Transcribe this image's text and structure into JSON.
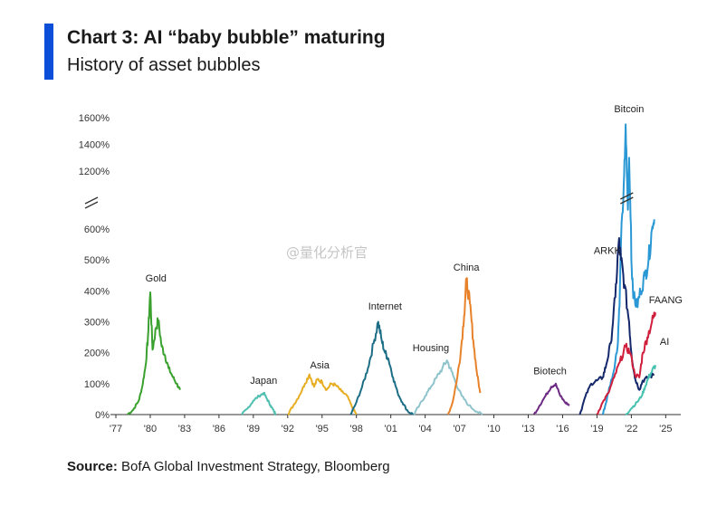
{
  "header": {
    "title": "Chart 3: AI “baby bubble” maturing",
    "subtitle": "History of asset bubbles"
  },
  "footer": {
    "source_label": "Source:",
    "source_text": " BofA Global Investment Strategy, Bloomberg"
  },
  "watermark": "@量化分析官",
  "colors": {
    "accent": "#0b4fd8",
    "axis": "#333333",
    "text": "#1a1a1a"
  },
  "chart_data": {
    "type": "line",
    "title": "History of asset bubbles",
    "xlabel": "",
    "ylabel": "",
    "xlim": [
      1977,
      2026
    ],
    "x_ticks": [
      "'77",
      "'80",
      "'83",
      "'86",
      "'89",
      "'92",
      "'95",
      "'98",
      "'01",
      "'04",
      "'07",
      "'10",
      "'13",
      "'16",
      "'19",
      "'22",
      "'25"
    ],
    "x_tick_years": [
      1977,
      1980,
      1983,
      1986,
      1989,
      1992,
      1995,
      1998,
      2001,
      2004,
      2007,
      2010,
      2013,
      2016,
      2019,
      2022,
      2025
    ],
    "y_ticks_lower": [
      "0%",
      "100%",
      "200%",
      "300%",
      "400%",
      "500%",
      "600%"
    ],
    "y_ticks_lower_values": [
      0,
      100,
      200,
      300,
      400,
      500,
      600
    ],
    "y_ticks_upper": [
      "1200%",
      "1400%",
      "1600%"
    ],
    "y_ticks_upper_values": [
      1200,
      1400,
      1600
    ],
    "axis_break": true,
    "grid": false,
    "series": [
      {
        "name": "Gold",
        "color": "#3aa02e",
        "label_year": 1980.5,
        "label_value": 430,
        "points": [
          [
            1978.0,
            0
          ],
          [
            1978.5,
            15
          ],
          [
            1979.0,
            45
          ],
          [
            1979.3,
            90
          ],
          [
            1979.6,
            160
          ],
          [
            1979.8,
            250
          ],
          [
            1980.0,
            395
          ],
          [
            1980.2,
            210
          ],
          [
            1980.5,
            280
          ],
          [
            1980.7,
            305
          ],
          [
            1981.0,
            220
          ],
          [
            1981.3,
            190
          ],
          [
            1981.6,
            150
          ],
          [
            1982.0,
            120
          ],
          [
            1982.3,
            100
          ],
          [
            1982.6,
            80
          ]
        ]
      },
      {
        "name": "Japan",
        "color": "#4fbfb0",
        "label_year": 1989.9,
        "label_value": 100,
        "points": [
          [
            1988.0,
            0
          ],
          [
            1988.5,
            20
          ],
          [
            1989.0,
            45
          ],
          [
            1989.5,
            60
          ],
          [
            1989.9,
            70
          ],
          [
            1990.2,
            50
          ],
          [
            1990.5,
            30
          ],
          [
            1990.8,
            10
          ],
          [
            1991.0,
            0
          ]
        ]
      },
      {
        "name": "Asia",
        "color": "#e7ae23",
        "label_year": 1994.8,
        "label_value": 150,
        "points": [
          [
            1992.0,
            0
          ],
          [
            1992.5,
            30
          ],
          [
            1993.0,
            60
          ],
          [
            1993.5,
            100
          ],
          [
            1993.9,
            130
          ],
          [
            1994.3,
            90
          ],
          [
            1994.6,
            115
          ],
          [
            1995.0,
            105
          ],
          [
            1995.4,
            80
          ],
          [
            1995.8,
            100
          ],
          [
            1996.2,
            95
          ],
          [
            1996.7,
            75
          ],
          [
            1997.2,
            60
          ],
          [
            1997.6,
            25
          ],
          [
            1998.0,
            0
          ]
        ]
      },
      {
        "name": "Internet",
        "color": "#1c6e86",
        "label_year": 2000.5,
        "label_value": 340,
        "points": [
          [
            1997.5,
            0
          ],
          [
            1998.0,
            40
          ],
          [
            1998.5,
            90
          ],
          [
            1999.0,
            150
          ],
          [
            1999.5,
            230
          ],
          [
            1999.9,
            300
          ],
          [
            2000.2,
            240
          ],
          [
            2000.5,
            200
          ],
          [
            2000.8,
            180
          ],
          [
            2001.2,
            120
          ],
          [
            2001.6,
            70
          ],
          [
            2002.0,
            40
          ],
          [
            2002.5,
            10
          ],
          [
            2003.0,
            0
          ]
        ]
      },
      {
        "name": "Housing",
        "color": "#8fc4cc",
        "label_year": 2004.5,
        "label_value": 205,
        "points": [
          [
            2003.0,
            0
          ],
          [
            2003.5,
            30
          ],
          [
            2004.0,
            60
          ],
          [
            2004.5,
            90
          ],
          [
            2005.0,
            120
          ],
          [
            2005.5,
            150
          ],
          [
            2005.9,
            175
          ],
          [
            2006.3,
            140
          ],
          [
            2006.7,
            100
          ],
          [
            2007.2,
            60
          ],
          [
            2007.8,
            30
          ],
          [
            2008.5,
            10
          ],
          [
            2009.0,
            0
          ]
        ]
      },
      {
        "name": "China",
        "color": "#e7822a",
        "label_year": 2007.6,
        "label_value": 465,
        "points": [
          [
            2006.0,
            0
          ],
          [
            2006.4,
            40
          ],
          [
            2006.8,
            120
          ],
          [
            2007.1,
            200
          ],
          [
            2007.4,
            320
          ],
          [
            2007.6,
            435
          ],
          [
            2007.9,
            360
          ],
          [
            2008.2,
            240
          ],
          [
            2008.5,
            140
          ],
          [
            2008.8,
            70
          ]
        ]
      },
      {
        "name": "Biotech",
        "color": "#6d2a82",
        "label_year": 2014.9,
        "label_value": 130,
        "points": [
          [
            2013.5,
            0
          ],
          [
            2014.0,
            30
          ],
          [
            2014.5,
            60
          ],
          [
            2015.0,
            90
          ],
          [
            2015.4,
            100
          ],
          [
            2015.8,
            60
          ],
          [
            2016.2,
            40
          ],
          [
            2016.6,
            30
          ]
        ]
      },
      {
        "name": "Bitcoin",
        "color": "#2a98d4",
        "label_year": 2021.8,
        "label_value": 1640,
        "points": [
          [
            2019.5,
            0
          ],
          [
            2019.8,
            40
          ],
          [
            2020.1,
            90
          ],
          [
            2020.4,
            130
          ],
          [
            2020.8,
            220
          ],
          [
            2021.0,
            400
          ],
          [
            2021.3,
            900
          ],
          [
            2021.5,
            1550
          ],
          [
            2021.7,
            800
          ],
          [
            2021.8,
            1300
          ],
          [
            2022.0,
            500
          ],
          [
            2022.2,
            380
          ],
          [
            2022.5,
            350
          ],
          [
            2022.8,
            400
          ],
          [
            2023.2,
            450
          ],
          [
            2023.5,
            500
          ],
          [
            2023.8,
            600
          ],
          [
            2024.0,
            700
          ]
        ]
      },
      {
        "name": "ARKK",
        "color": "#14276b",
        "label_year": 2019.9,
        "label_value": 520,
        "points": [
          [
            2017.5,
            0
          ],
          [
            2018.0,
            60
          ],
          [
            2018.5,
            100
          ],
          [
            2019.0,
            110
          ],
          [
            2019.5,
            120
          ],
          [
            2019.8,
            160
          ],
          [
            2020.2,
            230
          ],
          [
            2020.6,
            380
          ],
          [
            2020.9,
            560
          ],
          [
            2021.1,
            500
          ],
          [
            2021.4,
            420
          ],
          [
            2021.8,
            300
          ],
          [
            2022.0,
            200
          ],
          [
            2022.3,
            120
          ],
          [
            2022.7,
            80
          ],
          [
            2023.0,
            110
          ],
          [
            2023.5,
            120
          ],
          [
            2024.0,
            130
          ]
        ]
      },
      {
        "name": "FAANG",
        "color": "#d01f3c",
        "label_year": 2025.0,
        "label_value": 360,
        "points": [
          [
            2019.0,
            0
          ],
          [
            2019.5,
            40
          ],
          [
            2020.0,
            70
          ],
          [
            2020.5,
            120
          ],
          [
            2021.0,
            170
          ],
          [
            2021.5,
            220
          ],
          [
            2021.9,
            200
          ],
          [
            2022.3,
            130
          ],
          [
            2022.7,
            120
          ],
          [
            2023.0,
            200
          ],
          [
            2023.4,
            250
          ],
          [
            2023.8,
            300
          ],
          [
            2024.1,
            330
          ]
        ]
      },
      {
        "name": "AI",
        "color": "#47c2b0",
        "label_year": 2024.9,
        "label_value": 225,
        "points": [
          [
            2021.5,
            0
          ],
          [
            2022.0,
            20
          ],
          [
            2022.5,
            40
          ],
          [
            2022.9,
            60
          ],
          [
            2023.2,
            90
          ],
          [
            2023.5,
            120
          ],
          [
            2023.8,
            140
          ],
          [
            2024.1,
            160
          ]
        ]
      }
    ]
  }
}
